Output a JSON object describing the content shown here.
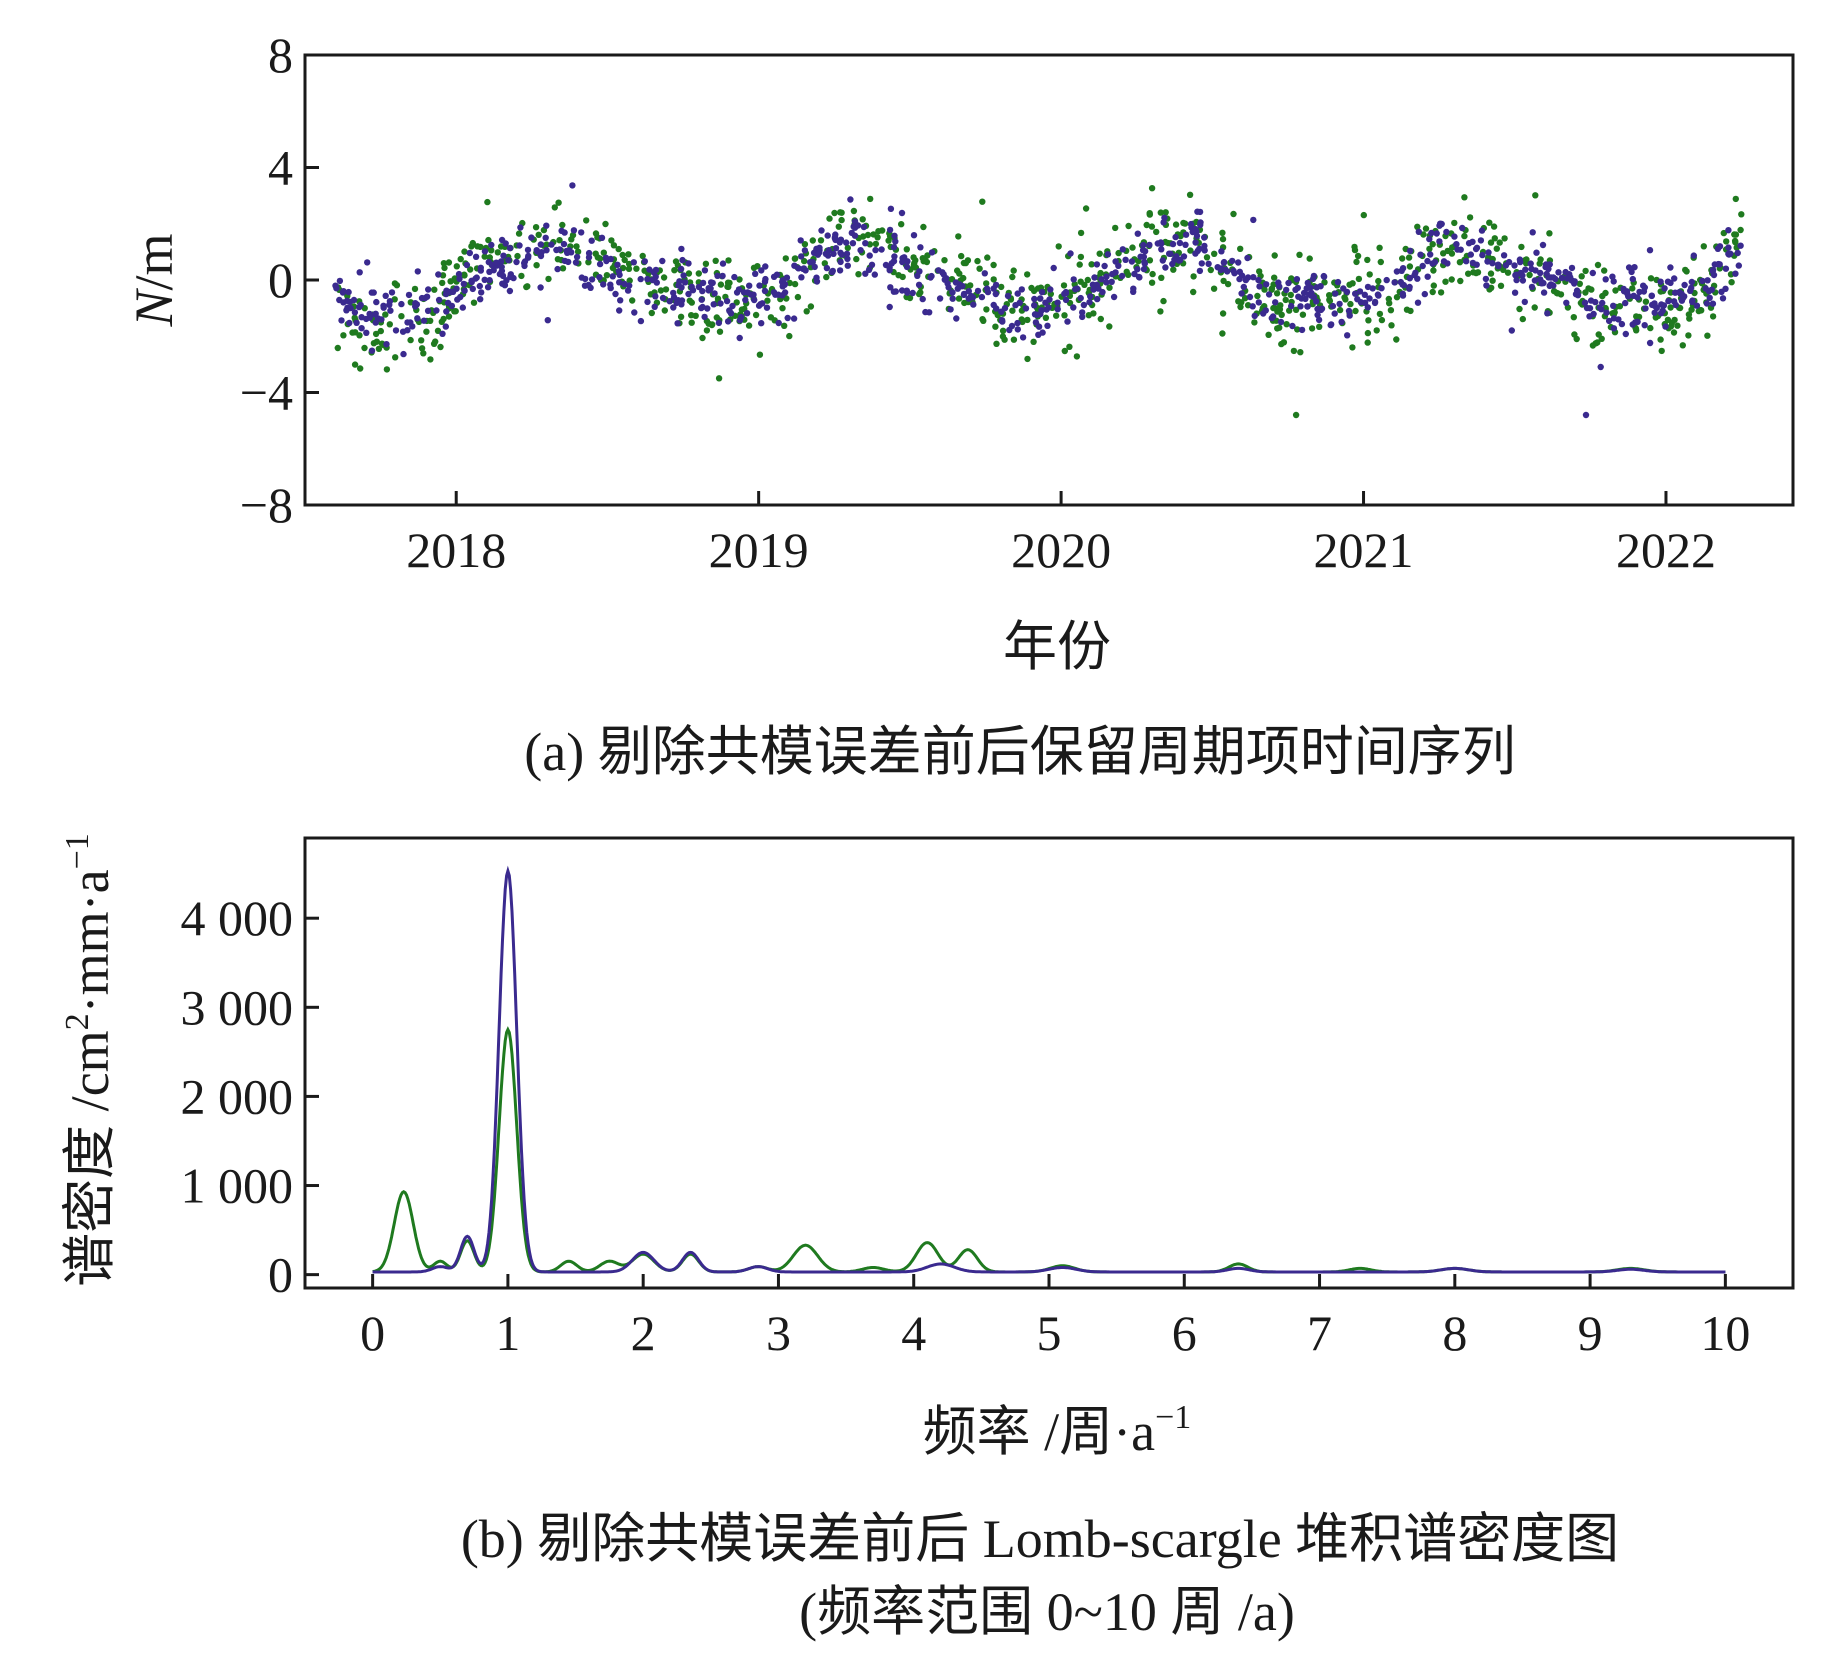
{
  "colors": {
    "green": "#1f7a1f",
    "purple": "#3a2a8f",
    "axis": "#1a1a1a"
  },
  "chart_data": [
    {
      "type": "scatter",
      "xlabel": "年份",
      "ylabel_italic": "N",
      "ylabel_rest": "/m",
      "caption": "(a) 剔除共模误差前后保留周期项时间序列",
      "xlim": [
        2017.5,
        2022.42
      ],
      "ylim": [
        -8,
        8
      ],
      "xticks": [
        2018,
        2019,
        2020,
        2021,
        2022
      ],
      "xtick_labels": [
        "2018",
        "2019",
        "2020",
        "2021",
        "2022"
      ],
      "yticks": [
        8,
        4,
        0,
        -4,
        -8
      ],
      "ytick_labels": [
        "8",
        "4",
        "0",
        "−4",
        "−8"
      ],
      "series": [
        {
          "color": "green",
          "x_start": 2017.6,
          "x_end": 2022.25,
          "knots": [
            [
              2017.6,
              -1.0
            ],
            [
              2017.75,
              -2.0
            ],
            [
              2017.9,
              -1.8
            ],
            [
              2018.0,
              -0.3
            ],
            [
              2018.15,
              0.9
            ],
            [
              2018.35,
              1.6
            ],
            [
              2018.55,
              0.3
            ],
            [
              2018.75,
              -0.5
            ],
            [
              2018.95,
              -1.2
            ],
            [
              2019.1,
              -0.2
            ],
            [
              2019.3,
              1.7
            ],
            [
              2019.5,
              0.6
            ],
            [
              2019.7,
              -0.6
            ],
            [
              2019.9,
              -1.0
            ],
            [
              2020.1,
              -0.3
            ],
            [
              2020.3,
              1.5
            ],
            [
              2020.5,
              0.9
            ],
            [
              2020.7,
              -0.9
            ],
            [
              2020.9,
              -0.7
            ],
            [
              2021.1,
              -0.4
            ],
            [
              2021.25,
              1.4
            ],
            [
              2021.45,
              0.5
            ],
            [
              2021.65,
              -0.3
            ],
            [
              2021.85,
              -1.0
            ],
            [
              2022.0,
              -1.2
            ],
            [
              2022.15,
              -0.2
            ],
            [
              2022.25,
              1.4
            ]
          ]
        },
        {
          "color": "purple",
          "x_start": 2017.6,
          "x_end": 2022.25,
          "knots": [
            [
              2017.6,
              -0.6
            ],
            [
              2017.75,
              -1.4
            ],
            [
              2017.9,
              -1.0
            ],
            [
              2018.0,
              -0.5
            ],
            [
              2018.15,
              0.5
            ],
            [
              2018.35,
              1.2
            ],
            [
              2018.55,
              0.0
            ],
            [
              2018.75,
              -0.4
            ],
            [
              2018.95,
              -0.9
            ],
            [
              2019.1,
              -0.1
            ],
            [
              2019.3,
              1.5
            ],
            [
              2019.5,
              0.4
            ],
            [
              2019.7,
              -0.5
            ],
            [
              2019.9,
              -0.9
            ],
            [
              2020.1,
              -0.4
            ],
            [
              2020.3,
              1.2
            ],
            [
              2020.5,
              1.0
            ],
            [
              2020.7,
              -1.0
            ],
            [
              2020.9,
              -0.8
            ],
            [
              2021.1,
              -0.3
            ],
            [
              2021.25,
              1.5
            ],
            [
              2021.45,
              0.6
            ],
            [
              2021.65,
              -0.2
            ],
            [
              2021.85,
              -0.9
            ],
            [
              2022.0,
              -1.0
            ],
            [
              2022.15,
              -0.3
            ],
            [
              2022.25,
              1.2
            ]
          ]
        }
      ]
    },
    {
      "type": "line",
      "xlabel": "频率 /周·a",
      "xlabel_sup": "−1",
      "ylabel": "谱密度 /cm",
      "ylabel_sup2": "2",
      "ylabel_mid": "·mm·a",
      "ylabel_sup": "−1",
      "caption_line1": "(b) 剔除共模误差前后 Lomb-scargle 堆积谱密度图",
      "caption_line2": "(频率范围 0~10 周 /a)",
      "xlim": [
        -0.5,
        10.5
      ],
      "ylim": [
        -150,
        4900
      ],
      "xticks": [
        0,
        1,
        2,
        3,
        4,
        5,
        6,
        7,
        8,
        9,
        10
      ],
      "xtick_labels": [
        "0",
        "1",
        "2",
        "3",
        "4",
        "5",
        "6",
        "7",
        "8",
        "9",
        "10"
      ],
      "yticks": [
        4000,
        3000,
        2000,
        1000,
        0
      ],
      "ytick_labels": [
        "4 000",
        "3 000",
        "2 000",
        "1 000",
        "0"
      ],
      "baseline": 30,
      "series": [
        {
          "color": "green",
          "peaks": [
            [
              0.23,
              900,
              0.07
            ],
            [
              0.5,
              120,
              0.05
            ],
            [
              0.7,
              350,
              0.05
            ],
            [
              1.0,
              2720,
              0.065
            ],
            [
              1.45,
              120,
              0.06
            ],
            [
              1.75,
              120,
              0.07
            ],
            [
              2.0,
              200,
              0.08
            ],
            [
              2.35,
              200,
              0.06
            ],
            [
              2.85,
              60,
              0.07
            ],
            [
              3.2,
              300,
              0.09
            ],
            [
              3.7,
              50,
              0.08
            ],
            [
              4.1,
              330,
              0.08
            ],
            [
              4.4,
              250,
              0.07
            ],
            [
              5.1,
              70,
              0.09
            ],
            [
              6.4,
              90,
              0.07
            ],
            [
              7.3,
              40,
              0.08
            ],
            [
              8.0,
              40,
              0.1
            ],
            [
              9.3,
              40,
              0.1
            ]
          ]
        },
        {
          "color": "purple",
          "peaks": [
            [
              0.5,
              60,
              0.06
            ],
            [
              0.7,
              400,
              0.05
            ],
            [
              1.0,
              4500,
              0.065
            ],
            [
              2.0,
              220,
              0.08
            ],
            [
              2.35,
              220,
              0.06
            ],
            [
              2.85,
              60,
              0.07
            ],
            [
              4.2,
              90,
              0.1
            ],
            [
              5.1,
              50,
              0.1
            ],
            [
              6.4,
              40,
              0.08
            ],
            [
              8.0,
              40,
              0.1
            ],
            [
              9.3,
              30,
              0.1
            ]
          ]
        }
      ]
    }
  ]
}
